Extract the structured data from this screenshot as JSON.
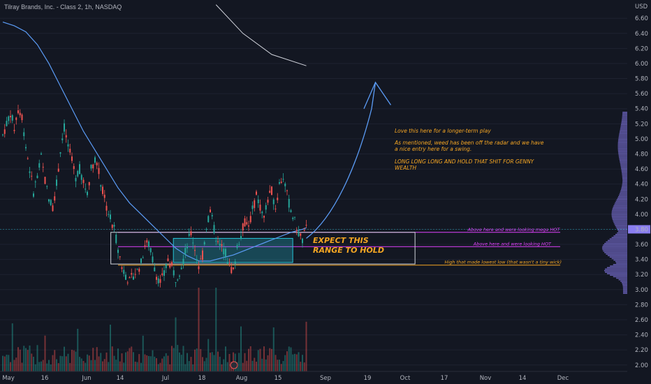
{
  "header": {
    "symbol": "Tilray Brands, Inc. - Class 2, 1h, NASDAQ"
  },
  "colors": {
    "background": "#131722",
    "up": "#26a69a",
    "down": "#ef5350",
    "ma": "#5b9cf6",
    "profile": "#8a7ef0",
    "magenta": "#e040fb",
    "orange": "#f5a623",
    "cyan": "#26c6da",
    "white": "#d1d4dc"
  },
  "chart_data": {
    "type": "candlestick",
    "currency": "USD",
    "y_ticks": [
      "2.00",
      "2.20",
      "2.40",
      "2.60",
      "2.80",
      "3.00",
      "3.20",
      "3.40",
      "3.60",
      "3.80",
      "4.00",
      "4.20",
      "4.40",
      "4.60",
      "4.80",
      "5.00",
      "5.20",
      "5.40",
      "5.60",
      "5.80",
      "6.00",
      "6.20",
      "6.40",
      "6.60"
    ],
    "ylim": [
      1.97,
      6.75
    ],
    "x_ticks": [
      "May",
      "16",
      "Jun",
      "14",
      "Jul",
      "18",
      "Aug",
      "15",
      "Sep",
      "19",
      "Oct",
      "17",
      "Nov",
      "14",
      "Dec"
    ],
    "last_price": "3.80",
    "price_path": [
      [
        0,
        5.05
      ],
      [
        2,
        5.2
      ],
      [
        4,
        5.35
      ],
      [
        6,
        5.15
      ],
      [
        8,
        5.4
      ],
      [
        10,
        5.3
      ],
      [
        12,
        4.9
      ],
      [
        14,
        4.6
      ],
      [
        16,
        4.3
      ],
      [
        18,
        4.5
      ],
      [
        20,
        4.75
      ],
      [
        22,
        4.45
      ],
      [
        24,
        4.2
      ],
      [
        26,
        4.1
      ],
      [
        28,
        4.4
      ],
      [
        30,
        4.85
      ],
      [
        32,
        5.15
      ],
      [
        34,
        4.9
      ],
      [
        36,
        4.7
      ],
      [
        38,
        4.5
      ],
      [
        40,
        4.6
      ],
      [
        42,
        4.4
      ],
      [
        44,
        4.3
      ],
      [
        46,
        4.6
      ],
      [
        48,
        4.75
      ],
      [
        50,
        4.55
      ],
      [
        52,
        4.3
      ],
      [
        54,
        4.1
      ],
      [
        56,
        3.95
      ],
      [
        58,
        3.8
      ],
      [
        60,
        3.55
      ],
      [
        62,
        3.3
      ],
      [
        64,
        3.2
      ],
      [
        66,
        3.1
      ],
      [
        68,
        3.2
      ],
      [
        70,
        3.25
      ],
      [
        72,
        3.35
      ],
      [
        74,
        3.6
      ],
      [
        76,
        3.6
      ],
      [
        78,
        3.4
      ],
      [
        80,
        3.2
      ],
      [
        82,
        3.1
      ],
      [
        84,
        3.2
      ],
      [
        86,
        3.4
      ],
      [
        88,
        3.3
      ],
      [
        90,
        3.15
      ],
      [
        92,
        3.25
      ],
      [
        94,
        3.4
      ],
      [
        96,
        3.6
      ],
      [
        98,
        3.75
      ],
      [
        100,
        3.55
      ],
      [
        102,
        3.3
      ],
      [
        104,
        3.45
      ],
      [
        106,
        3.85
      ],
      [
        108,
        4.05
      ],
      [
        110,
        3.8
      ],
      [
        112,
        3.6
      ],
      [
        114,
        3.55
      ],
      [
        116,
        3.5
      ],
      [
        118,
        3.3
      ],
      [
        120,
        3.25
      ],
      [
        122,
        3.55
      ],
      [
        124,
        3.75
      ],
      [
        126,
        3.9
      ],
      [
        128,
        3.85
      ],
      [
        130,
        4.05
      ],
      [
        132,
        4.25
      ],
      [
        134,
        4.1
      ],
      [
        136,
        3.95
      ],
      [
        138,
        4.2
      ],
      [
        140,
        4.3
      ],
      [
        142,
        4.1
      ],
      [
        144,
        4.4
      ],
      [
        146,
        4.5
      ],
      [
        148,
        4.25
      ],
      [
        150,
        4.05
      ],
      [
        152,
        3.9
      ],
      [
        154,
        3.75
      ],
      [
        156,
        3.65
      ],
      [
        158,
        3.8
      ]
    ],
    "moving_average": [
      [
        0,
        6.55
      ],
      [
        6,
        6.5
      ],
      [
        12,
        6.42
      ],
      [
        18,
        6.25
      ],
      [
        24,
        6.0
      ],
      [
        30,
        5.7
      ],
      [
        36,
        5.4
      ],
      [
        42,
        5.1
      ],
      [
        48,
        4.85
      ],
      [
        54,
        4.6
      ],
      [
        60,
        4.35
      ],
      [
        66,
        4.15
      ],
      [
        72,
        4.0
      ],
      [
        78,
        3.85
      ],
      [
        84,
        3.7
      ],
      [
        90,
        3.55
      ],
      [
        96,
        3.45
      ],
      [
        102,
        3.38
      ],
      [
        108,
        3.38
      ],
      [
        114,
        3.42
      ],
      [
        120,
        3.46
      ],
      [
        126,
        3.52
      ],
      [
        132,
        3.58
      ],
      [
        138,
        3.64
      ],
      [
        144,
        3.7
      ],
      [
        150,
        3.76
      ],
      [
        156,
        3.8
      ],
      [
        158,
        3.82
      ]
    ],
    "upper_ma_segment": [
      [
        111,
        6.78
      ],
      [
        125,
        6.4
      ],
      [
        140,
        6.12
      ],
      [
        158,
        5.97
      ]
    ],
    "levels": [
      {
        "name": "mega-hot",
        "price": 3.76,
        "color": "magenta",
        "label": "Above here and were looking mega HOT",
        "label_x": 242
      },
      {
        "name": "lowest-low",
        "price": 3.325,
        "color": "orange",
        "label": "High that made lowest low (that wasn't a tiny wick)",
        "label_x": 230
      },
      {
        "name": "hot",
        "price": 3.57,
        "color": "magenta",
        "label": "Above here and were looking HOT",
        "label_x": 245
      }
    ],
    "boxes": [
      {
        "name": "white-range",
        "t0": 76,
        "t1": 290,
        "p0": 3.34,
        "p1": 3.76,
        "color": "white",
        "fill": "none"
      },
      {
        "name": "cyan-range",
        "t0": 120,
        "t1": 204,
        "p0": 3.36,
        "p1": 3.68,
        "color": "cyan",
        "fill": "rgba(38,198,218,0.28)"
      }
    ],
    "range_text": [
      "EXPECT THIS",
      "RANGE TO HOLD"
    ],
    "forecast": [
      [
        158,
        3.68
      ],
      [
        172,
        3.95
      ],
      [
        184,
        4.6
      ],
      [
        192,
        5.4
      ],
      [
        194,
        5.75
      ]
    ],
    "forecast_head": [
      [
        188,
        5.4
      ],
      [
        194,
        5.75
      ],
      [
        202,
        5.45
      ]
    ],
    "notes": [
      "Love this here for a longer-term play",
      "As mentioned, weed has been off the radar and we have",
      "a nice entry here for a swing.",
      "LONG LONG LONG AND HOLD THAT SHIT FOR GENNY",
      "WEALTH"
    ]
  }
}
